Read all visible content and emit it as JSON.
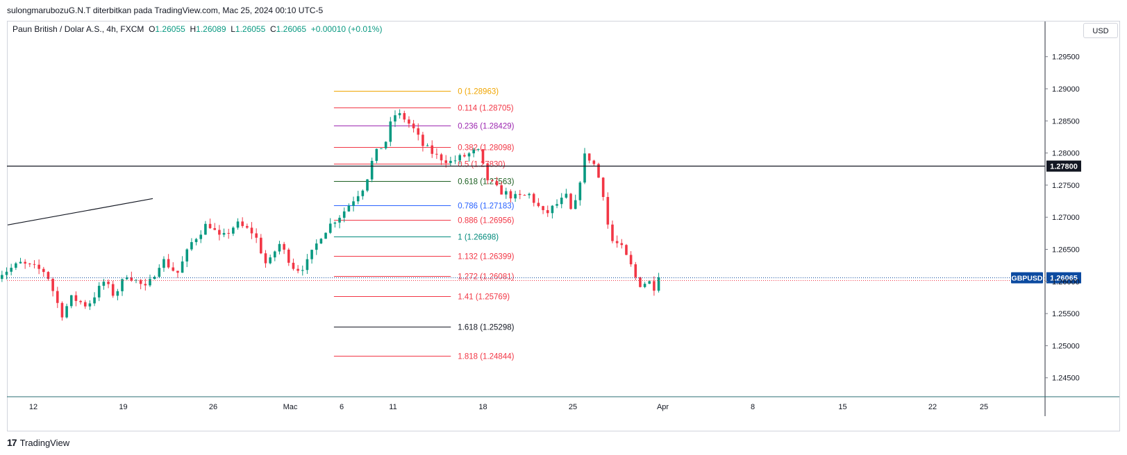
{
  "header": {
    "publisher_line": "sulongmarubozuG.N.T diterbitkan pada TradingView.com, Mac 25, 2024 00:10 UTC-5"
  },
  "legend": {
    "symbol_line": "Paun British / Dolar A.S., 4h, FXCM",
    "open_label": "O",
    "open": "1.26055",
    "high_label": "H",
    "high": "1.26089",
    "low_label": "L",
    "low": "1.26055",
    "close_label": "C",
    "close": "1.26065",
    "change": "+0.00010 (+0.01%)"
  },
  "price_axis": {
    "currency_button": "USD"
  },
  "footer": {
    "logo_text": "TradingView",
    "logo_mark": "17"
  },
  "colors": {
    "up": "#089981",
    "down": "#f23645",
    "candle_body": "#ffffff"
  },
  "chart_data": {
    "type": "candlestick",
    "symbol": "GBPUSD",
    "interval": "4h",
    "ylim": [
      1.2425,
      1.298
    ],
    "y_ticks": [
      "1.29500",
      "1.29000",
      "1.28500",
      "1.28000",
      "1.27500",
      "1.27000",
      "1.26500",
      "1.26000",
      "1.25500",
      "1.25000",
      "1.24500"
    ],
    "x_ticks": [
      {
        "label": "12",
        "day": 0
      },
      {
        "label": "19",
        "day": 7
      },
      {
        "label": "26",
        "day": 14
      },
      {
        "label": "Mac",
        "day": 20
      },
      {
        "label": "6",
        "day": 24
      },
      {
        "label": "11",
        "day": 28
      },
      {
        "label": "18",
        "day": 35
      },
      {
        "label": "25",
        "day": 42
      },
      {
        "label": "Apr",
        "day": 49
      },
      {
        "label": "8",
        "day": 56
      },
      {
        "label": "15",
        "day": 63
      },
      {
        "label": "22",
        "day": 70
      },
      {
        "label": "25",
        "day": 74
      }
    ],
    "horizontal_line": {
      "value": 1.278,
      "label": "1.27800",
      "color": "#131722"
    },
    "last_price": {
      "symbol_label": "GBPUSD",
      "value": 1.26065,
      "label": "1.26065",
      "color": "#0b4aa0"
    },
    "trend_line": {
      "from": {
        "day": -2,
        "price": 1.2688
      },
      "to": {
        "day": 9.3,
        "price": 1.2729
      },
      "color": "#131722"
    },
    "fibonacci": {
      "start_day": 23.4,
      "end_day": 32.5,
      "levels": [
        {
          "label": "0 (1.28963)",
          "value": 1.28963,
          "color": "#f0a500"
        },
        {
          "label": "0.114 (1.28705)",
          "value": 1.28705,
          "color": "#f23645"
        },
        {
          "label": "0.236 (1.28429)",
          "value": 1.28429,
          "color": "#9c27b0"
        },
        {
          "label": "0.382 (1.28098)",
          "value": 1.28098,
          "color": "#f23645"
        },
        {
          "label": "0.5 (1.27830)",
          "value": 1.2783,
          "color": "#f23645"
        },
        {
          "label": "0.618 (1.27563)",
          "value": 1.27563,
          "color": "#1b5e20"
        },
        {
          "label": "0.786 (1.27183)",
          "value": 1.27183,
          "color": "#2962ff"
        },
        {
          "label": "0.886 (1.26956)",
          "value": 1.26956,
          "color": "#f23645"
        },
        {
          "label": "1 (1.26698)",
          "value": 1.26698,
          "color": "#00897b"
        },
        {
          "label": "1.132 (1.26399)",
          "value": 1.26399,
          "color": "#f23645"
        },
        {
          "label": "1.272 (1.26081)",
          "value": 1.26081,
          "color": "#f23645"
        },
        {
          "label": "1.41 (1.25769)",
          "value": 1.25769,
          "color": "#f23645"
        },
        {
          "label": "1.618 (1.25298)",
          "value": 1.25298,
          "color": "#131722"
        },
        {
          "label": "1.818 (1.24844)",
          "value": 1.24844,
          "color": "#f23645"
        }
      ]
    },
    "series": [
      {
        "name": "GBPUSD",
        "anchors": [
          {
            "day": -2.8,
            "price": 1.261
          },
          {
            "day": -1.0,
            "price": 1.2628
          },
          {
            "day": 1.0,
            "price": 1.2615
          },
          {
            "day": 2.2,
            "price": 1.2548
          },
          {
            "day": 3.0,
            "price": 1.2575
          },
          {
            "day": 4.2,
            "price": 1.2562
          },
          {
            "day": 5.5,
            "price": 1.26
          },
          {
            "day": 6.3,
            "price": 1.2578
          },
          {
            "day": 7.3,
            "price": 1.2612
          },
          {
            "day": 8.8,
            "price": 1.2588
          },
          {
            "day": 10.0,
            "price": 1.2635
          },
          {
            "day": 11.2,
            "price": 1.2612
          },
          {
            "day": 12.3,
            "price": 1.266
          },
          {
            "day": 13.6,
            "price": 1.2692
          },
          {
            "day": 14.6,
            "price": 1.2665
          },
          {
            "day": 15.8,
            "price": 1.269
          },
          {
            "day": 17.2,
            "price": 1.2675
          },
          {
            "day": 18.2,
            "price": 1.2622
          },
          {
            "day": 19.1,
            "price": 1.266
          },
          {
            "day": 20.4,
            "price": 1.2618
          },
          {
            "day": 21.2,
            "price": 1.2625
          },
          {
            "day": 22.4,
            "price": 1.2672
          },
          {
            "day": 23.3,
            "price": 1.2693
          },
          {
            "day": 24.0,
            "price": 1.2705
          },
          {
            "day": 25.8,
            "price": 1.275
          },
          {
            "day": 26.5,
            "price": 1.2795
          },
          {
            "day": 27.5,
            "price": 1.282
          },
          {
            "day": 28.0,
            "price": 1.286
          },
          {
            "day": 28.7,
            "price": 1.2858
          },
          {
            "day": 29.5,
            "price": 1.284
          },
          {
            "day": 30.3,
            "price": 1.2812
          },
          {
            "day": 31.4,
            "price": 1.2795
          },
          {
            "day": 32.5,
            "price": 1.2786
          },
          {
            "day": 33.5,
            "price": 1.2795
          },
          {
            "day": 34.6,
            "price": 1.2804
          },
          {
            "day": 35.3,
            "price": 1.276
          },
          {
            "day": 36.2,
            "price": 1.2742
          },
          {
            "day": 37.6,
            "price": 1.273
          },
          {
            "day": 38.6,
            "price": 1.2735
          },
          {
            "day": 39.8,
            "price": 1.2703
          },
          {
            "day": 40.6,
            "price": 1.2718
          },
          {
            "day": 41.5,
            "price": 1.2732
          },
          {
            "day": 42.0,
            "price": 1.27
          },
          {
            "day": 42.9,
            "price": 1.2795
          },
          {
            "day": 43.5,
            "price": 1.279
          },
          {
            "day": 44.3,
            "price": 1.2745
          },
          {
            "day": 44.9,
            "price": 1.2665
          },
          {
            "day": 45.7,
            "price": 1.2655
          },
          {
            "day": 46.5,
            "price": 1.2625
          },
          {
            "day": 47.1,
            "price": 1.2595
          },
          {
            "day": 47.9,
            "price": 1.26
          },
          {
            "day": 48.4,
            "price": 1.259
          },
          {
            "day": 48.8,
            "price": 1.26065
          }
        ]
      }
    ]
  }
}
